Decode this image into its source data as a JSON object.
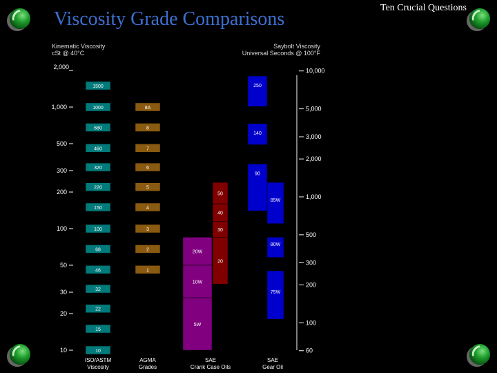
{
  "header": {
    "title": "Viscosity Grade Comparisons",
    "section": "Ten Crucial Questions"
  },
  "icons": [
    "green-sphere-icon",
    "green-sphere-icon",
    "green-sphere-icon",
    "green-sphere-icon",
    "green-sphere-icon"
  ],
  "chart_data": {
    "type": "bar",
    "title": "Viscosity Grade Comparisons",
    "left_axis": {
      "label_line1": "Kinematic Viscosity",
      "label_line2": "cSt @ 40°C",
      "scale": "log",
      "range": [
        10,
        2000
      ],
      "ticks": [
        {
          "label": "2,000",
          "value": 2000
        },
        {
          "label": "1,000",
          "value": 1000
        },
        {
          "label": "500",
          "value": 500
        },
        {
          "label": "300",
          "value": 300
        },
        {
          "label": "200",
          "value": 200
        },
        {
          "label": "100",
          "value": 100
        },
        {
          "label": "50",
          "value": 50
        },
        {
          "label": "30",
          "value": 30
        },
        {
          "label": "20",
          "value": 20
        },
        {
          "label": "10",
          "value": 10
        }
      ]
    },
    "right_axis": {
      "label_line1": "Saybolt Viscosity",
      "label_line2": "Universal Seconds @ 100°F",
      "scale": "log",
      "ticks": [
        {
          "label": "10,000",
          "value": 10000
        },
        {
          "label": "5,000",
          "value": 5000
        },
        {
          "label": "3,000",
          "value": 3000
        },
        {
          "label": "2,000",
          "value": 2000
        },
        {
          "label": "1,000",
          "value": 1000
        },
        {
          "label": "500",
          "value": 500
        },
        {
          "label": "300",
          "value": 300
        },
        {
          "label": "200",
          "value": 200
        },
        {
          "label": "100",
          "value": 100
        },
        {
          "label": "60",
          "value": 60
        }
      ]
    },
    "columns": [
      {
        "name": "ISO/ASTM Viscosity",
        "label_line1": "ISO/ASTM",
        "label_line2": "Viscosity",
        "color": "#007a7a",
        "grades": [
          {
            "label": "1500",
            "value": 1500
          },
          {
            "label": "1000",
            "value": 1000
          },
          {
            "label": "680",
            "value": 680
          },
          {
            "label": "460",
            "value": 460
          },
          {
            "label": "320",
            "value": 320
          },
          {
            "label": "220",
            "value": 220
          },
          {
            "label": "150",
            "value": 150
          },
          {
            "label": "100",
            "value": 100
          },
          {
            "label": "68",
            "value": 68
          },
          {
            "label": "46",
            "value": 46
          },
          {
            "label": "32",
            "value": 32
          },
          {
            "label": "22",
            "value": 22
          },
          {
            "label": "15",
            "value": 15
          },
          {
            "label": "10",
            "value": 10
          }
        ]
      },
      {
        "name": "AGMA Grades",
        "label_line1": "AGMA",
        "label_line2": "Grades",
        "color": "#8a5a10",
        "grades": [
          {
            "label": "8A",
            "value": 1000
          },
          {
            "label": "8",
            "value": 680
          },
          {
            "label": "7",
            "value": 460
          },
          {
            "label": "6",
            "value": 320
          },
          {
            "label": "5",
            "value": 220
          },
          {
            "label": "4",
            "value": 150
          },
          {
            "label": "3",
            "value": 100
          },
          {
            "label": "2",
            "value": 68
          },
          {
            "label": "1",
            "value": 46
          }
        ]
      }
    ],
    "sae_crankcase": {
      "label_line1": "SAE",
      "label_line2": "Crank Case Oils",
      "color_main": "#800080",
      "color_high": "#800000",
      "grades": [
        {
          "label": "50",
          "range": [
            160,
            240
          ],
          "tone": "high"
        },
        {
          "label": "40",
          "range": [
            115,
            160
          ],
          "tone": "high"
        },
        {
          "label": "30",
          "range": [
            85,
            115
          ],
          "tone": "high"
        },
        {
          "label": "20",
          "range": [
            35,
            85
          ],
          "tone": "high"
        },
        {
          "label": "20W",
          "range": [
            50,
            85
          ],
          "tone": "main"
        },
        {
          "label": "10W",
          "range": [
            27,
            50
          ],
          "tone": "main"
        },
        {
          "label": "5W",
          "range": [
            10,
            27
          ],
          "tone": "main"
        }
      ]
    },
    "sae_gear": {
      "label_line1": "SAE",
      "label_line2": "Gear Oil",
      "color": "#0000cc",
      "grades": [
        {
          "label": "250",
          "range": [
            1010,
            1800
          ]
        },
        {
          "label": "140",
          "range": [
            490,
            730
          ]
        },
        {
          "label": "90",
          "range": [
            140,
            340
          ]
        },
        {
          "label": "85W",
          "range": [
            110,
            240
          ]
        },
        {
          "label": "80W",
          "range": [
            58,
            85
          ]
        },
        {
          "label": "75W",
          "range": [
            18,
            45
          ]
        }
      ]
    }
  }
}
